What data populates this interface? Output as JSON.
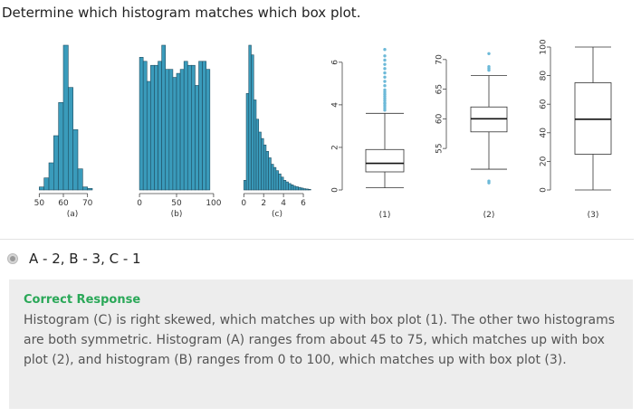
{
  "question": "Determine which histogram matches which box plot.",
  "colors": {
    "bar": "#3a9bbb",
    "bar_stroke": "#1f4e62",
    "outlier": "#6cb9d8",
    "feedback_title": "#2aa858"
  },
  "chart_data": [
    {
      "type": "bar",
      "caption": "(a)",
      "x_ticks": [
        "50",
        "60",
        "70"
      ],
      "xlim": [
        48,
        78
      ],
      "bin_width": 2,
      "bin_starts": [
        50,
        52,
        54,
        56,
        58,
        60,
        62,
        64,
        66,
        68,
        70
      ],
      "values": [
        1,
        4,
        9,
        18,
        29,
        48,
        34,
        20,
        7,
        1,
        0.5
      ]
    },
    {
      "type": "bar",
      "caption": "(b)",
      "x_ticks": [
        "0",
        "50",
        "100"
      ],
      "xlim": [
        -5,
        105
      ],
      "bin_width": 5,
      "bin_starts": [
        0,
        5,
        10,
        15,
        20,
        25,
        30,
        35,
        40,
        45,
        50,
        55,
        60,
        65,
        70,
        75,
        80,
        85,
        90
      ],
      "values": [
        33,
        32,
        27,
        31,
        31,
        32,
        36,
        30,
        30,
        28,
        29,
        30,
        32,
        31,
        31,
        26,
        32,
        32,
        30
      ]
    },
    {
      "type": "bar",
      "caption": "(c)",
      "x_ticks": [
        "0",
        "2",
        "4",
        "6"
      ],
      "xlim": [
        -0.3,
        7
      ],
      "bin_width": 0.25,
      "bin_starts": [
        0,
        0.25,
        0.5,
        0.75,
        1,
        1.25,
        1.5,
        1.75,
        2,
        2.25,
        2.5,
        2.75,
        3,
        3.25,
        3.5,
        3.75,
        4,
        4.25,
        4.5,
        4.75,
        5,
        5.25,
        5.5,
        5.75,
        6,
        6.25,
        6.5
      ],
      "values": [
        3,
        30,
        45,
        42,
        28,
        22,
        18,
        16,
        14,
        12,
        10,
        8,
        7,
        6,
        5,
        4,
        3,
        2.5,
        2,
        1.6,
        1.2,
        1,
        0.8,
        0.6,
        0.4,
        0.3,
        0.2
      ]
    },
    {
      "type": "box",
      "caption": "(1)",
      "y_ticks": [
        "0",
        "2",
        "4",
        "6"
      ],
      "ylim": [
        0,
        6.8
      ],
      "whisker_low": 0.1,
      "q1": 0.85,
      "median": 1.25,
      "q3": 1.9,
      "whisker_high": 3.6,
      "outliers": [
        3.75,
        3.85,
        3.95,
        4.05,
        4.1,
        4.2,
        4.3,
        4.4,
        4.5,
        4.6,
        4.7,
        4.9,
        5.1,
        5.3,
        5.5,
        5.7,
        5.9,
        6.1,
        6.3,
        6.6
      ]
    },
    {
      "type": "box",
      "caption": "(2)",
      "y_ticks": [
        "55",
        "60",
        "65",
        "70"
      ],
      "ylim": [
        48,
        71.5
      ],
      "whisker_low": 51.5,
      "q1": 57.8,
      "median": 60.0,
      "q3": 62.0,
      "whisker_high": 67.3,
      "outliers": [
        49.2,
        49.5,
        68.2,
        68.5,
        68.8,
        71
      ]
    },
    {
      "type": "box",
      "caption": "(3)",
      "y_ticks": [
        "0",
        "20",
        "40",
        "60",
        "80",
        "100"
      ],
      "ylim": [
        0,
        100
      ],
      "whisker_low": 0,
      "q1": 25,
      "median": 49.5,
      "q3": 75,
      "whisker_high": 100,
      "outliers": []
    }
  ],
  "answer": {
    "label": "A - 2, B - 3, C - 1"
  },
  "feedback": {
    "title": "Correct Response",
    "text": "Histogram (C) is right skewed, which matches up with box plot (1). The other two histograms are both symmetric. Histogram (A) ranges from about 45 to 75, which matches up with box plot (2), and histogram (B) ranges from 0 to 100, which matches up with box plot (3)."
  }
}
